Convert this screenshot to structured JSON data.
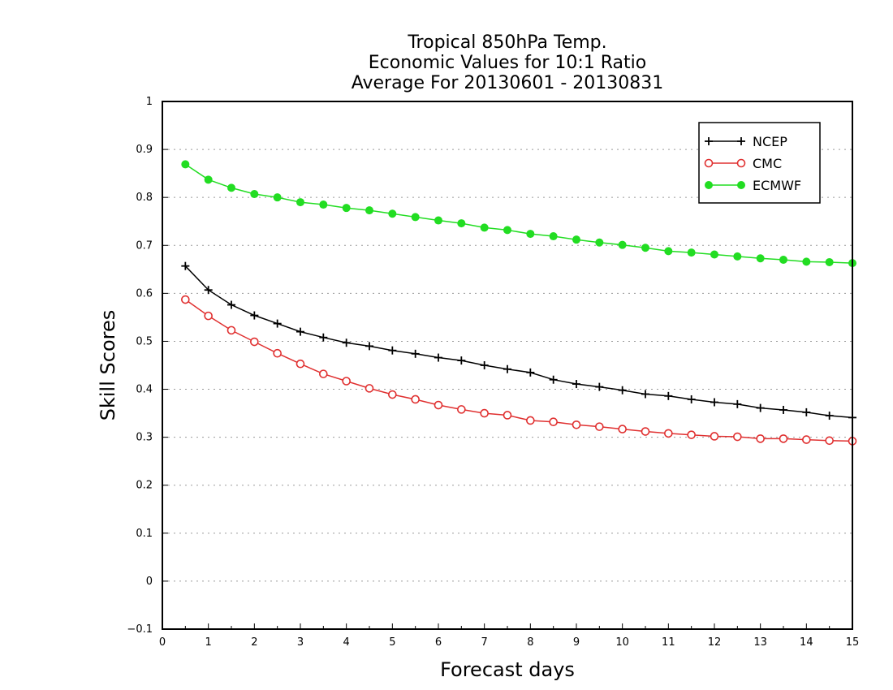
{
  "chart_data": {
    "type": "line",
    "title": [
      "Tropical 850hPa Temp.",
      "Economic Values for 10:1 Ratio",
      "Average For 20130601 - 20130831"
    ],
    "xlabel": "Forecast days",
    "ylabel": "Skill Scores",
    "xlim": [
      0,
      15
    ],
    "ylim": [
      -0.1,
      1
    ],
    "xticks": [
      0,
      1,
      2,
      3,
      4,
      5,
      6,
      7,
      8,
      9,
      10,
      11,
      12,
      13,
      14,
      15
    ],
    "xtick_labels": [
      "0",
      "1",
      "2",
      "3",
      "4",
      "5",
      "6",
      "7",
      "8",
      "9",
      "10",
      "11",
      "12",
      "13",
      "14",
      "15"
    ],
    "yticks": [
      -0.1,
      0,
      0.1,
      0.2,
      0.3,
      0.4,
      0.5,
      0.6,
      0.7,
      0.8,
      0.9,
      1
    ],
    "ytick_labels": [
      "−0.1",
      "0",
      "0.1",
      "0.2",
      "0.3",
      "0.4",
      "0.5",
      "0.6",
      "0.7",
      "0.8",
      "0.9",
      "1"
    ],
    "grid": "horizontal-dotted",
    "legend_position": "top-right",
    "x": [
      0.5,
      1,
      1.5,
      2,
      2.5,
      3,
      3.5,
      4,
      4.5,
      5,
      5.5,
      6,
      6.5,
      7,
      7.5,
      8,
      8.5,
      9,
      9.5,
      10,
      10.5,
      11,
      11.5,
      12,
      12.5,
      13,
      13.5,
      14,
      14.5,
      15
    ],
    "series": [
      {
        "name": "NCEP",
        "color": "#000000",
        "marker": "plus",
        "values": [
          0.657,
          0.607,
          0.576,
          0.554,
          0.537,
          0.52,
          0.508,
          0.497,
          0.49,
          0.481,
          0.474,
          0.466,
          0.46,
          0.45,
          0.442,
          0.435,
          0.42,
          0.411,
          0.405,
          0.398,
          0.39,
          0.386,
          0.379,
          0.373,
          0.369,
          0.361,
          0.357,
          0.352,
          0.345,
          0.341
        ]
      },
      {
        "name": "CMC",
        "color": "#e03030",
        "marker": "open-circle",
        "values": [
          0.587,
          0.553,
          0.523,
          0.499,
          0.475,
          0.453,
          0.432,
          0.417,
          0.402,
          0.389,
          0.379,
          0.367,
          0.358,
          0.35,
          0.346,
          0.335,
          0.332,
          0.326,
          0.322,
          0.317,
          0.312,
          0.308,
          0.305,
          0.302,
          0.301,
          0.297,
          0.297,
          0.295,
          0.293,
          0.292
        ]
      },
      {
        "name": "ECMWF",
        "color": "#22dd22",
        "marker": "filled-circle",
        "values": [
          0.869,
          0.837,
          0.82,
          0.807,
          0.8,
          0.79,
          0.785,
          0.778,
          0.773,
          0.766,
          0.759,
          0.752,
          0.746,
          0.737,
          0.732,
          0.724,
          0.719,
          0.712,
          0.706,
          0.701,
          0.695,
          0.688,
          0.685,
          0.681,
          0.677,
          0.673,
          0.67,
          0.666,
          0.665,
          0.663
        ]
      }
    ]
  }
}
